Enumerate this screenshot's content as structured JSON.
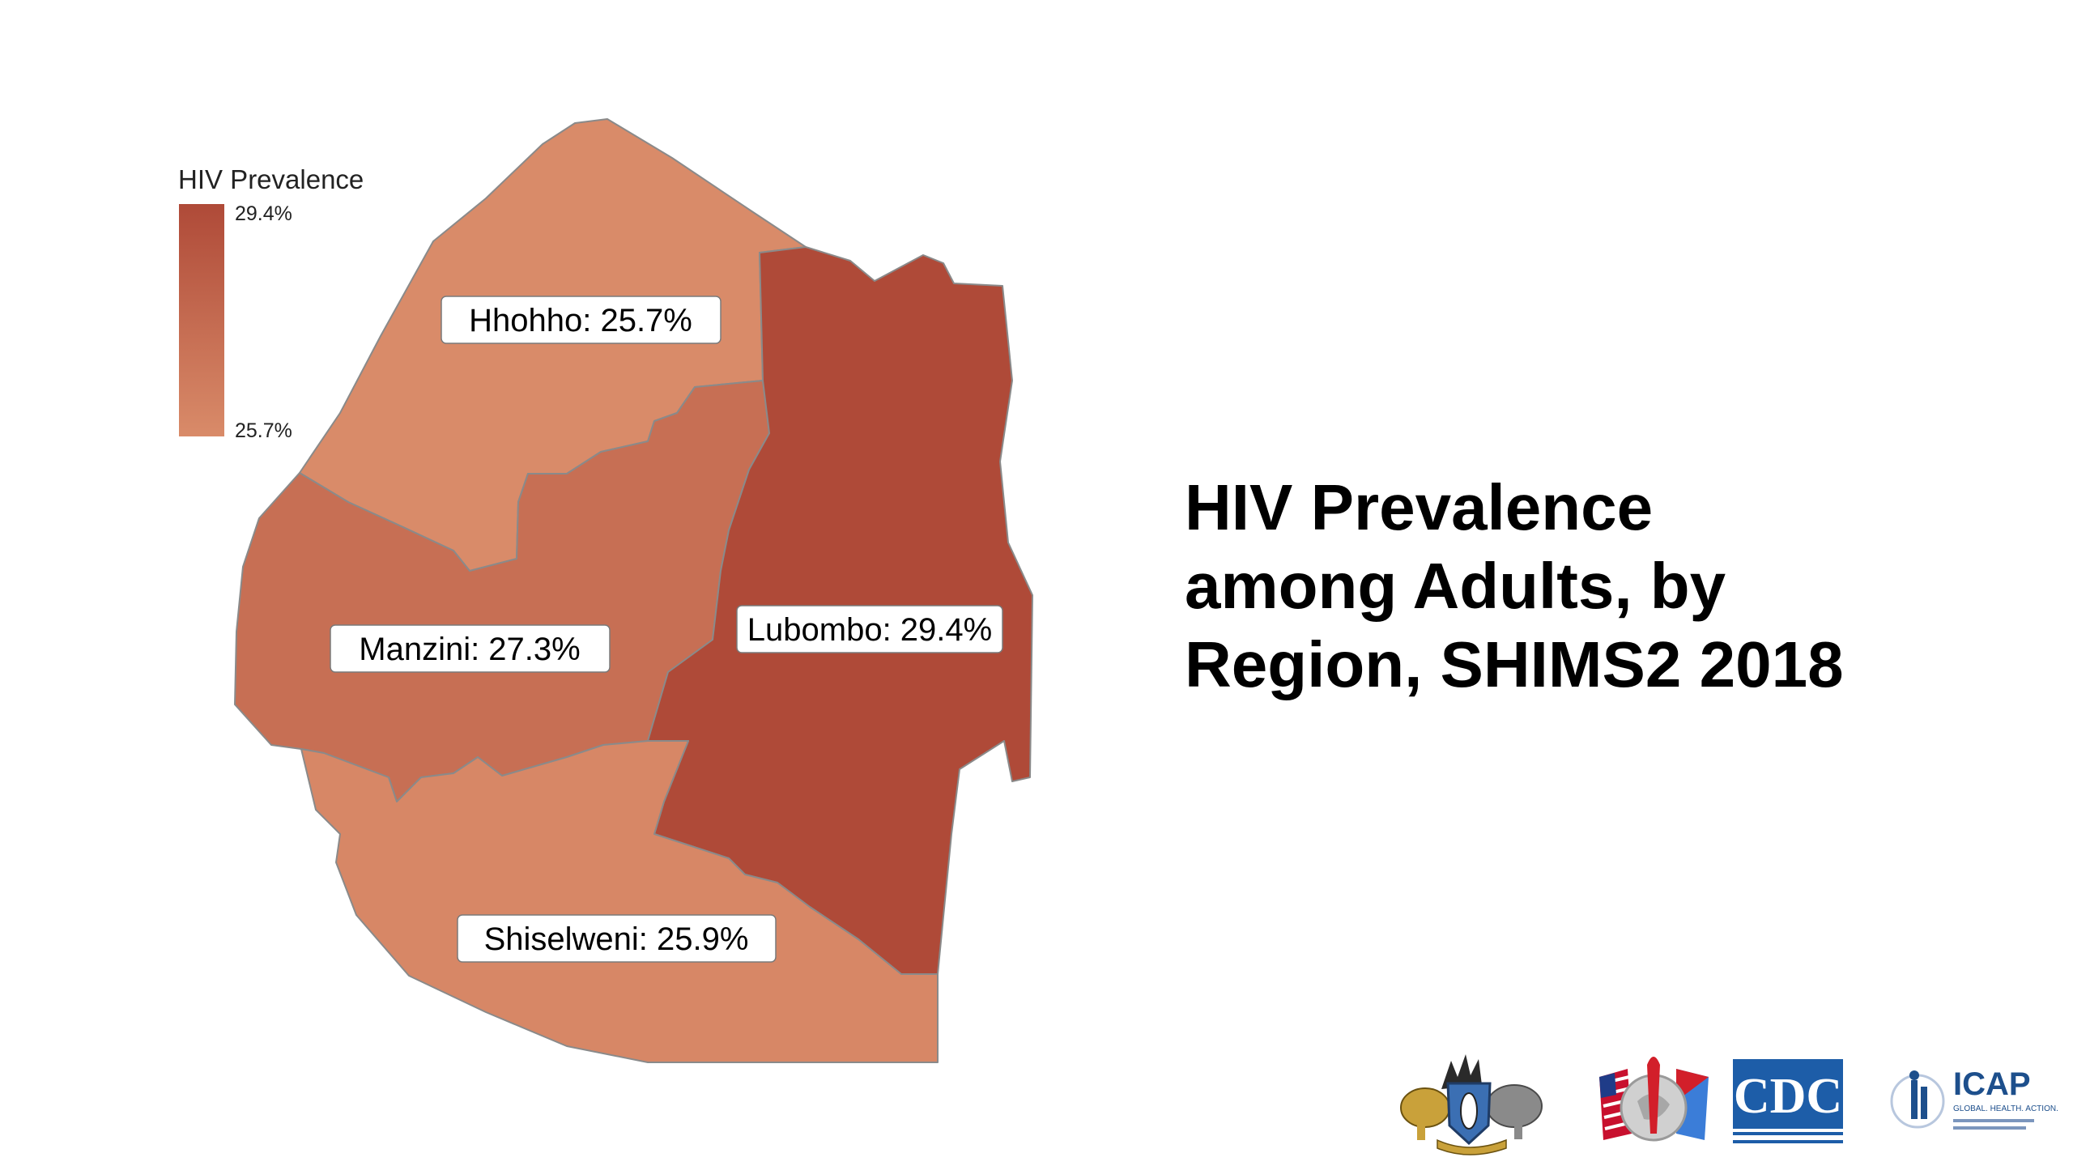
{
  "title": {
    "line1": "HIV Prevalence",
    "line2": "among Adults, by",
    "line3": "Region, SHIMS2 2018"
  },
  "legend": {
    "title": "HIV Prevalence",
    "max_label": "29.4%",
    "min_label": "25.7%",
    "max_value": 29.4,
    "min_value": 25.7,
    "color_high": "#af4a38",
    "color_low": "#d98b69"
  },
  "regions": [
    {
      "name": "Hhohho",
      "value": 25.7,
      "label": "Hhohho: 25.7%"
    },
    {
      "name": "Manzini",
      "value": 27.3,
      "label": "Manzini: 27.3%"
    },
    {
      "name": "Lubombo",
      "value": 29.4,
      "label": "Lubombo: 29.4%"
    },
    {
      "name": "Shiselweni",
      "value": 25.9,
      "label": "Shiselweni: 25.9%"
    }
  ],
  "logos": {
    "cdc_text": "CDC",
    "icap_text": "ICAP",
    "icap_sub": "GLOBAL. HEALTH. ACTION."
  },
  "colors": {
    "border": "#8a8a8a",
    "text": "#000000"
  }
}
